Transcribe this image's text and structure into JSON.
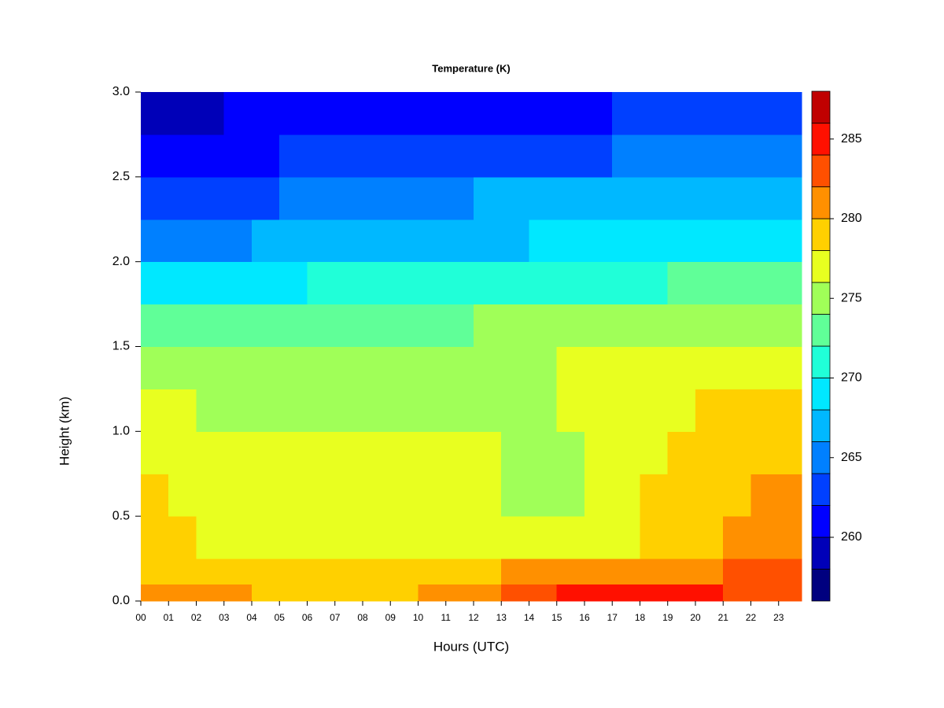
{
  "chart_data": {
    "type": "heatmap",
    "title": "Temperature (K)",
    "x_label": "Hours (UTC)",
    "y_label": "Height (km)",
    "xlim": [
      0,
      23.83
    ],
    "ylim": [
      0,
      3
    ],
    "xticks": [
      {
        "value": 0,
        "label": "00"
      },
      {
        "value": 1,
        "label": "01"
      },
      {
        "value": 2,
        "label": "02"
      },
      {
        "value": 3,
        "label": "03"
      },
      {
        "value": 4,
        "label": "04"
      },
      {
        "value": 5,
        "label": "05"
      },
      {
        "value": 6,
        "label": "06"
      },
      {
        "value": 7,
        "label": "07"
      },
      {
        "value": 8,
        "label": "08"
      },
      {
        "value": 9,
        "label": "09"
      },
      10,
      11,
      12,
      13,
      14,
      15,
      16,
      17,
      18,
      19,
      20,
      21,
      22,
      23
    ],
    "yticks": [
      {
        "value": 0,
        "label": "0.0"
      },
      0.5,
      {
        "value": 1,
        "label": "1.0"
      },
      1.5,
      {
        "value": 2,
        "label": "2.0"
      },
      2.5,
      {
        "value": 3,
        "label": "3.0"
      }
    ],
    "x": [
      0,
      1,
      2,
      3,
      4,
      5,
      6,
      7,
      8,
      9,
      10,
      11,
      12,
      13,
      14,
      15,
      16,
      17,
      18,
      19,
      20,
      21,
      22,
      23
    ],
    "y": [
      0,
      0.1,
      0.25,
      0.5,
      0.75,
      1.0,
      1.25,
      1.5,
      1.75,
      2.0,
      2.25,
      2.5,
      2.75
    ],
    "z": [
      [
        281,
        280,
        280,
        280,
        279,
        279,
        279,
        279,
        279,
        279,
        280,
        280,
        281,
        282,
        283,
        284,
        284,
        284,
        285,
        285,
        284,
        283,
        283,
        282
      ],
      [
        279,
        279,
        278,
        278,
        278,
        278,
        278,
        278,
        278,
        278,
        278,
        278,
        279,
        280,
        280,
        280,
        280,
        281,
        281,
        281,
        281,
        282,
        282,
        282
      ],
      [
        279,
        278,
        277,
        277,
        277,
        277,
        277,
        277,
        277,
        277,
        277,
        277,
        277,
        276,
        276,
        276,
        277,
        277,
        278,
        279,
        279,
        280,
        281,
        281
      ],
      [
        278,
        277,
        277,
        277,
        277,
        277,
        277,
        277,
        277,
        277,
        277,
        277,
        277,
        275,
        275,
        275,
        277,
        277,
        278,
        279,
        279,
        279,
        280,
        280
      ],
      [
        277,
        277,
        277,
        276,
        276,
        276,
        276,
        277,
        277,
        277,
        277,
        277,
        277,
        275,
        275,
        275,
        276,
        276,
        277,
        278,
        278,
        279,
        279,
        279
      ],
      [
        276,
        276,
        275,
        275,
        275,
        275,
        275,
        275,
        275,
        275,
        275,
        275,
        275,
        275,
        275,
        276,
        277,
        277,
        277,
        277,
        278,
        279,
        279,
        279
      ],
      [
        275,
        275,
        275,
        275,
        275,
        275,
        275,
        275,
        275,
        275,
        275,
        275,
        275,
        275,
        275,
        276,
        276,
        276,
        276,
        276,
        277,
        277,
        277,
        277
      ],
      [
        273,
        273,
        272,
        272,
        272,
        273,
        273,
        273,
        273,
        273,
        273,
        273,
        274,
        274,
        274,
        274,
        274,
        274,
        274,
        275,
        275,
        275,
        275,
        275
      ],
      [
        269,
        269,
        269,
        269,
        269,
        269,
        270,
        270,
        270,
        270,
        270,
        270,
        270,
        270,
        271,
        271,
        271,
        271,
        271,
        272,
        272,
        272,
        272,
        273
      ],
      [
        265,
        264,
        265,
        265,
        266,
        266,
        266,
        267,
        267,
        267,
        267,
        267,
        267,
        267,
        268,
        268,
        268,
        268,
        268,
        268,
        268,
        269,
        269,
        269
      ],
      [
        263,
        262,
        263,
        263,
        263,
        264,
        264,
        264,
        265,
        265,
        265,
        265,
        266,
        266,
        266,
        266,
        266,
        266,
        266,
        266,
        266,
        267,
        267,
        267
      ],
      [
        261,
        260,
        261,
        261,
        261,
        262,
        262,
        262,
        262,
        262,
        263,
        263,
        263,
        263,
        263,
        263,
        263,
        264,
        264,
        264,
        264,
        265,
        265,
        265
      ],
      [
        258,
        258,
        259,
        260,
        260,
        260,
        260,
        260,
        261,
        261,
        261,
        261,
        261,
        261,
        261,
        261,
        261,
        262,
        262,
        262,
        262,
        262,
        263,
        263
      ]
    ],
    "levels": [
      256,
      258,
      260,
      262,
      264,
      266,
      268,
      270,
      272,
      274,
      276,
      278,
      280,
      282,
      284,
      286,
      288
    ],
    "colors": [
      "#00007f",
      "#0000b8",
      "#0000ff",
      "#0040ff",
      "#0080ff",
      "#00b8ff",
      "#00e8ff",
      "#20ffd8",
      "#60ff98",
      "#a0ff58",
      "#e8ff20",
      "#ffd000",
      "#ff9000",
      "#ff5000",
      "#ff1000",
      "#c00000"
    ],
    "colorbar_ticks": [
      260,
      265,
      270,
      275,
      280,
      285
    ]
  }
}
